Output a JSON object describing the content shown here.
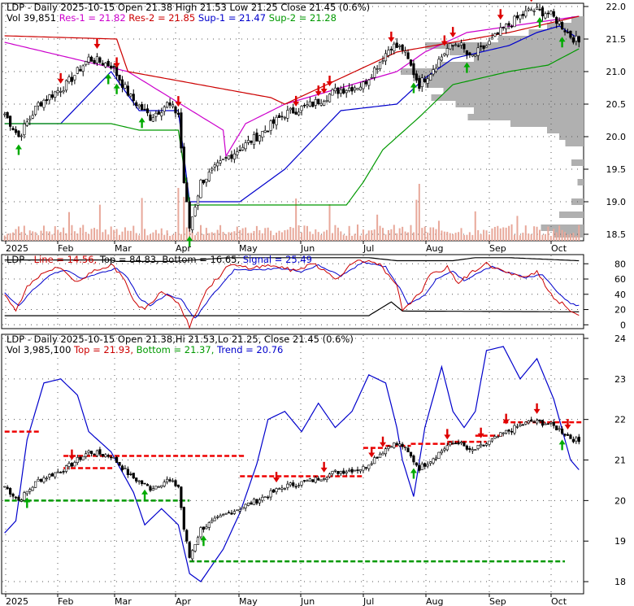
{
  "chart_data": [
    {
      "type": "candlestick",
      "panel": "price",
      "legend_line1": [
        {
          "text": "LDP - Daily 2025-10-15 Open 21.38  High 21.53  Low 21.25  Close 21.45 (0.6%)",
          "color": "#000000"
        }
      ],
      "legend_line2": [
        {
          "text": "Vol 39,851",
          "color": "#000000"
        },
        {
          "text": "Res-1 = 21.82",
          "color": "#cc00cc"
        },
        {
          "text": "Res-2 = 21.85",
          "color": "#cc0000"
        },
        {
          "text": "Sup-1 = 21.47",
          "color": "#0000cc"
        },
        {
          "text": "Sup-2 = 21.28",
          "color": "#009900"
        }
      ],
      "y_ticks": [
        "22.0",
        "21.5",
        "21.0",
        "20.5",
        "20.0",
        "19.5",
        "19.0",
        "18.5"
      ],
      "ylim": [
        18.4,
        22.05
      ],
      "x_labels": [
        "2025",
        "Feb",
        "Mar",
        "Apr",
        "May",
        "Jun",
        "Jul",
        "Aug",
        "Sep",
        "Oct"
      ],
      "close_keypoints": [
        [
          0,
          20.35
        ],
        [
          5,
          20.0
        ],
        [
          12,
          20.5
        ],
        [
          22,
          20.8
        ],
        [
          30,
          21.2
        ],
        [
          38,
          21.1
        ],
        [
          45,
          20.6
        ],
        [
          52,
          20.3
        ],
        [
          58,
          20.5
        ],
        [
          62,
          20.35
        ],
        [
          64,
          19.3
        ],
        [
          66,
          18.6
        ],
        [
          70,
          19.3
        ],
        [
          80,
          19.7
        ],
        [
          90,
          20.0
        ],
        [
          100,
          20.35
        ],
        [
          110,
          20.5
        ],
        [
          118,
          20.7
        ],
        [
          128,
          20.8
        ],
        [
          133,
          21.1
        ],
        [
          138,
          21.4
        ],
        [
          142,
          21.35
        ],
        [
          148,
          20.8
        ],
        [
          152,
          21.0
        ],
        [
          158,
          21.35
        ],
        [
          162,
          21.45
        ],
        [
          166,
          21.2
        ],
        [
          172,
          21.4
        ],
        [
          178,
          21.65
        ],
        [
          184,
          21.85
        ],
        [
          188,
          21.95
        ],
        [
          194,
          21.9
        ],
        [
          198,
          21.75
        ],
        [
          202,
          21.55
        ],
        [
          205,
          21.45
        ]
      ],
      "sell_arrows": [
        20,
        33,
        40,
        62,
        104,
        112,
        114,
        116,
        138,
        157,
        160,
        177,
        188
      ],
      "buy_arrows": [
        5,
        37,
        40,
        49,
        66,
        146,
        165,
        191,
        199
      ],
      "lines": {
        "res1": {
          "color": "#cc00cc",
          "points": [
            [
              0,
              21.45
            ],
            [
              44,
              21.0
            ],
            [
              78,
              20.1
            ],
            [
              79,
              19.7
            ],
            [
              86,
              20.2
            ],
            [
              100,
              20.5
            ],
            [
              140,
              21.0
            ],
            [
              150,
              21.3
            ],
            [
              160,
              21.5
            ],
            [
              165,
              21.6
            ],
            [
              205,
              21.85
            ]
          ]
        },
        "res2": {
          "color": "#cc0000",
          "points": [
            [
              0,
              21.55
            ],
            [
              40,
              21.5
            ],
            [
              44,
              21.0
            ],
            [
              95,
              20.6
            ],
            [
              100,
              20.5
            ],
            [
              140,
              21.3
            ],
            [
              180,
              21.6
            ],
            [
              205,
              21.85
            ]
          ]
        },
        "sup1": {
          "color": "#0000cc",
          "points": [
            [
              0,
              20.2
            ],
            [
              20,
              20.2
            ],
            [
              38,
              21.0
            ],
            [
              48,
              20.4
            ],
            [
              62,
              20.4
            ],
            [
              66,
              19.0
            ],
            [
              80,
              19.0
            ],
            [
              84,
              19.0
            ],
            [
              100,
              19.5
            ],
            [
              120,
              20.4
            ],
            [
              140,
              20.5
            ],
            [
              150,
              20.9
            ],
            [
              160,
              21.2
            ],
            [
              180,
              21.4
            ],
            [
              190,
              21.6
            ],
            [
              198,
              21.7
            ],
            [
              205,
              21.5
            ]
          ]
        },
        "sup2": {
          "color": "#009900",
          "points": [
            [
              0,
              20.2
            ],
            [
              38,
              20.2
            ],
            [
              48,
              20.1
            ],
            [
              62,
              20.1
            ],
            [
              66,
              18.95
            ],
            [
              122,
              18.95
            ],
            [
              128,
              19.3
            ],
            [
              135,
              19.8
            ],
            [
              148,
              20.3
            ],
            [
              160,
              20.8
            ],
            [
              180,
              21.0
            ],
            [
              194,
              21.1
            ],
            [
              205,
              21.35
            ]
          ]
        }
      }
    },
    {
      "type": "line",
      "panel": "stochastic",
      "legend": [
        {
          "text": "LDP - ",
          "color": "#000000"
        },
        {
          "text": "Line = 14.56,",
          "color": "#cc0000"
        },
        {
          "text": "Top = 84.83,",
          "color": "#000000"
        },
        {
          "text": "Bottom = 16.65,",
          "color": "#000000"
        },
        {
          "text": "Signal = 25.49",
          "color": "#0000cc"
        }
      ],
      "y_ticks": [
        "80",
        "60",
        "40",
        "20",
        "0"
      ],
      "ylim": [
        -5,
        92
      ],
      "top_band": [
        [
          0,
          85
        ],
        [
          38,
          85
        ],
        [
          40,
          83
        ],
        [
          60,
          83
        ],
        [
          80,
          88
        ],
        [
          130,
          88
        ],
        [
          140,
          84
        ],
        [
          160,
          84
        ],
        [
          168,
          88
        ],
        [
          180,
          88
        ],
        [
          205,
          84
        ]
      ],
      "bottom_band": [
        [
          0,
          12
        ],
        [
          130,
          12
        ],
        [
          138,
          30
        ],
        [
          142,
          18
        ],
        [
          205,
          17
        ]
      ],
      "line_keypoints": [
        [
          0,
          40
        ],
        [
          4,
          18
        ],
        [
          8,
          50
        ],
        [
          14,
          70
        ],
        [
          20,
          75
        ],
        [
          26,
          55
        ],
        [
          32,
          72
        ],
        [
          38,
          78
        ],
        [
          42,
          65
        ],
        [
          46,
          30
        ],
        [
          50,
          20
        ],
        [
          56,
          45
        ],
        [
          62,
          30
        ],
        [
          66,
          -2
        ],
        [
          72,
          45
        ],
        [
          80,
          78
        ],
        [
          88,
          75
        ],
        [
          96,
          78
        ],
        [
          104,
          70
        ],
        [
          110,
          82
        ],
        [
          118,
          60
        ],
        [
          126,
          86
        ],
        [
          134,
          78
        ],
        [
          140,
          50
        ],
        [
          142,
          20
        ],
        [
          148,
          40
        ],
        [
          152,
          65
        ],
        [
          158,
          75
        ],
        [
          162,
          55
        ],
        [
          168,
          72
        ],
        [
          172,
          80
        ],
        [
          178,
          70
        ],
        [
          184,
          62
        ],
        [
          190,
          70
        ],
        [
          196,
          35
        ],
        [
          200,
          25
        ],
        [
          204,
          12
        ]
      ],
      "signal_keypoints": [
        [
          0,
          42
        ],
        [
          5,
          25
        ],
        [
          10,
          45
        ],
        [
          16,
          65
        ],
        [
          22,
          72
        ],
        [
          28,
          60
        ],
        [
          34,
          68
        ],
        [
          40,
          74
        ],
        [
          44,
          62
        ],
        [
          48,
          35
        ],
        [
          52,
          25
        ],
        [
          58,
          40
        ],
        [
          63,
          33
        ],
        [
          68,
          8
        ],
        [
          74,
          38
        ],
        [
          82,
          72
        ],
        [
          90,
          72
        ],
        [
          98,
          74
        ],
        [
          106,
          70
        ],
        [
          112,
          78
        ],
        [
          120,
          64
        ],
        [
          128,
          82
        ],
        [
          136,
          76
        ],
        [
          141,
          48
        ],
        [
          144,
          28
        ],
        [
          150,
          38
        ],
        [
          154,
          60
        ],
        [
          160,
          70
        ],
        [
          164,
          58
        ],
        [
          170,
          70
        ],
        [
          174,
          76
        ],
        [
          180,
          68
        ],
        [
          186,
          62
        ],
        [
          192,
          66
        ],
        [
          198,
          40
        ],
        [
          202,
          28
        ],
        [
          205,
          25
        ]
      ]
    },
    {
      "type": "candlestick",
      "panel": "trend",
      "legend_line1": [
        {
          "text": "LDP - Daily 2025-10-15 Open 21.38,Hi 21.53,Lo 21.25,  Close 21.45 (0.6%)",
          "color": "#000000"
        }
      ],
      "legend_line2": [
        {
          "text": "Vol 3,985,100",
          "color": "#000000"
        },
        {
          "text": "Top = 21.93,",
          "color": "#cc0000"
        },
        {
          "text": "Bottom = 21.37,",
          "color": "#009900"
        },
        {
          "text": "Trend = 20.76",
          "color": "#0000cc"
        }
      ],
      "y_ticks": [
        "24",
        "23",
        "22",
        "21",
        "20",
        "19",
        "18"
      ],
      "ylim": [
        17.7,
        24.1
      ],
      "x_labels": [
        "2025",
        "Feb",
        "Mar",
        "Apr",
        "May",
        "Jun",
        "Jul",
        "Aug",
        "Sep",
        "Oct"
      ],
      "trend_keypoints": [
        [
          0,
          19.2
        ],
        [
          4,
          19.5
        ],
        [
          8,
          21.5
        ],
        [
          14,
          22.9
        ],
        [
          20,
          23.0
        ],
        [
          26,
          22.6
        ],
        [
          30,
          21.7
        ],
        [
          38,
          21.2
        ],
        [
          46,
          20.2
        ],
        [
          50,
          19.4
        ],
        [
          56,
          19.8
        ],
        [
          62,
          19.4
        ],
        [
          66,
          18.2
        ],
        [
          70,
          18.0
        ],
        [
          78,
          18.8
        ],
        [
          84,
          19.7
        ],
        [
          90,
          20.9
        ],
        [
          94,
          22.0
        ],
        [
          100,
          22.2
        ],
        [
          106,
          21.7
        ],
        [
          112,
          22.4
        ],
        [
          118,
          21.8
        ],
        [
          124,
          22.2
        ],
        [
          130,
          23.1
        ],
        [
          136,
          22.9
        ],
        [
          140,
          21.8
        ],
        [
          142,
          21.0
        ],
        [
          146,
          20.1
        ],
        [
          150,
          21.8
        ],
        [
          156,
          23.3
        ],
        [
          160,
          22.2
        ],
        [
          164,
          21.8
        ],
        [
          168,
          22.2
        ],
        [
          172,
          23.7
        ],
        [
          178,
          23.8
        ],
        [
          184,
          23.0
        ],
        [
          190,
          23.5
        ],
        [
          196,
          22.5
        ],
        [
          202,
          21.0
        ],
        [
          205,
          20.76
        ]
      ],
      "top_segments": [
        [
          0,
          13,
          21.7
        ],
        [
          21,
          39,
          20.8
        ],
        [
          21,
          86,
          21.1
        ],
        [
          84,
          128,
          20.6
        ],
        [
          128,
          136,
          21.3
        ],
        [
          136,
          145,
          21.35
        ],
        [
          145,
          160,
          21.4
        ],
        [
          158,
          172,
          21.45
        ],
        [
          168,
          178,
          21.6
        ],
        [
          178,
          206,
          21.93
        ]
      ],
      "bottom_segments": [
        [
          0,
          66,
          20.0
        ],
        [
          66,
          200,
          18.5
        ]
      ],
      "sell_arrows": [
        24,
        97,
        114,
        131,
        135,
        158,
        170,
        179,
        190,
        201
      ],
      "buy_arrows": [
        8,
        50,
        71,
        146,
        199
      ]
    }
  ]
}
